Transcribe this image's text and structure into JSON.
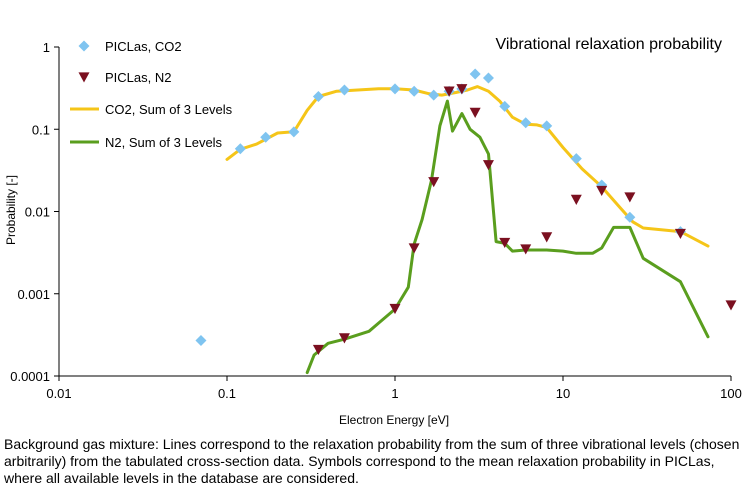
{
  "chart_data": {
    "type": "scatter",
    "title": "Vibrational relaxation probability",
    "xlabel": "Electron Energy [eV]",
    "ylabel": "Probability [-]",
    "xscale": "log",
    "yscale": "log",
    "xlim": [
      0.01,
      100
    ],
    "ylim": [
      0.0001,
      1
    ],
    "x_ticks": [
      "0.01",
      "0.1",
      "1",
      "10",
      "100"
    ],
    "y_ticks": [
      "0.0001",
      "0.001",
      "0.01",
      "0.1",
      "1"
    ],
    "grid": false,
    "legend_position": "top-left",
    "series": [
      {
        "name": "PICLas, CO2",
        "kind": "markers",
        "marker": "diamond",
        "color": "#7fc4f0",
        "points": [
          [
            0.07,
            0.00027
          ],
          [
            0.12,
            0.058
          ],
          [
            0.17,
            0.08
          ],
          [
            0.25,
            0.093
          ],
          [
            0.35,
            0.25
          ],
          [
            0.5,
            0.3
          ],
          [
            1.0,
            0.31
          ],
          [
            1.3,
            0.29
          ],
          [
            1.7,
            0.26
          ],
          [
            2.1,
            0.29
          ],
          [
            2.5,
            0.31
          ],
          [
            3.0,
            0.47
          ],
          [
            3.6,
            0.42
          ],
          [
            4.5,
            0.19
          ],
          [
            6.0,
            0.12
          ],
          [
            8.0,
            0.11
          ],
          [
            12.0,
            0.044
          ],
          [
            17.0,
            0.021
          ],
          [
            25.0,
            0.0085
          ],
          [
            50.0,
            0.0057
          ]
        ]
      },
      {
        "name": "PICLas, N2",
        "kind": "markers",
        "marker": "triangle-down",
        "color": "#7b1020",
        "points": [
          [
            0.35,
            0.00021
          ],
          [
            0.5,
            0.00029
          ],
          [
            1.0,
            0.00066
          ],
          [
            1.3,
            0.0036
          ],
          [
            1.7,
            0.023
          ],
          [
            2.1,
            0.29
          ],
          [
            2.5,
            0.31
          ],
          [
            3.0,
            0.16
          ],
          [
            3.6,
            0.037
          ],
          [
            4.5,
            0.0042
          ],
          [
            6.0,
            0.0035
          ],
          [
            8.0,
            0.0049
          ],
          [
            12.0,
            0.014
          ],
          [
            17.0,
            0.018
          ],
          [
            25.0,
            0.015
          ],
          [
            50.0,
            0.0054
          ],
          [
            100.0,
            0.00073
          ]
        ]
      },
      {
        "name": "CO2, Sum of 3 Levels",
        "kind": "line",
        "color": "#f5c518",
        "points": [
          [
            0.1,
            0.043
          ],
          [
            0.12,
            0.057
          ],
          [
            0.15,
            0.066
          ],
          [
            0.2,
            0.09
          ],
          [
            0.25,
            0.093
          ],
          [
            0.3,
            0.17
          ],
          [
            0.35,
            0.25
          ],
          [
            0.45,
            0.29
          ],
          [
            0.6,
            0.3
          ],
          [
            0.8,
            0.31
          ],
          [
            1.0,
            0.31
          ],
          [
            1.3,
            0.3
          ],
          [
            1.6,
            0.27
          ],
          [
            1.9,
            0.26
          ],
          [
            2.3,
            0.28
          ],
          [
            2.7,
            0.3
          ],
          [
            3.1,
            0.33
          ],
          [
            3.6,
            0.29
          ],
          [
            4.2,
            0.22
          ],
          [
            5.0,
            0.14
          ],
          [
            6.0,
            0.115
          ],
          [
            7.0,
            0.113
          ],
          [
            8.0,
            0.105
          ],
          [
            10.0,
            0.06
          ],
          [
            13.0,
            0.033
          ],
          [
            17.0,
            0.02
          ],
          [
            22.0,
            0.011
          ],
          [
            26.0,
            0.0075
          ],
          [
            30.0,
            0.0063
          ],
          [
            50.0,
            0.0057
          ],
          [
            73.0,
            0.0038
          ]
        ]
      },
      {
        "name": "N2, Sum of 3 Levels",
        "kind": "line",
        "color": "#5a9e1e",
        "points": [
          [
            0.3,
            0.00011
          ],
          [
            0.33,
            0.00018
          ],
          [
            0.4,
            0.00025
          ],
          [
            0.5,
            0.00028
          ],
          [
            0.7,
            0.00035
          ],
          [
            1.0,
            0.00065
          ],
          [
            1.2,
            0.0012
          ],
          [
            1.3,
            0.004
          ],
          [
            1.45,
            0.008
          ],
          [
            1.65,
            0.024
          ],
          [
            1.85,
            0.11
          ],
          [
            2.05,
            0.22
          ],
          [
            2.2,
            0.095
          ],
          [
            2.5,
            0.155
          ],
          [
            2.8,
            0.1
          ],
          [
            3.2,
            0.08
          ],
          [
            3.6,
            0.05
          ],
          [
            4.0,
            0.0043
          ],
          [
            4.5,
            0.0041
          ],
          [
            5.0,
            0.0033
          ],
          [
            6.0,
            0.0034
          ],
          [
            8.0,
            0.0034
          ],
          [
            10.0,
            0.0033
          ],
          [
            12.0,
            0.0031
          ],
          [
            15.0,
            0.0031
          ],
          [
            17.0,
            0.0036
          ],
          [
            20.0,
            0.0064
          ],
          [
            25.0,
            0.0064
          ],
          [
            30.0,
            0.0027
          ],
          [
            50.0,
            0.0014
          ],
          [
            73.0,
            0.0003
          ]
        ]
      }
    ]
  },
  "caption": "Background gas mixture: Lines correspond to the relaxation probability from the sum of three vibrational levels (chosen arbitrarily) from the tabulated cross-section data. Symbols correspond to the mean relaxation probability in PICLas, where all available levels in the database are considered."
}
